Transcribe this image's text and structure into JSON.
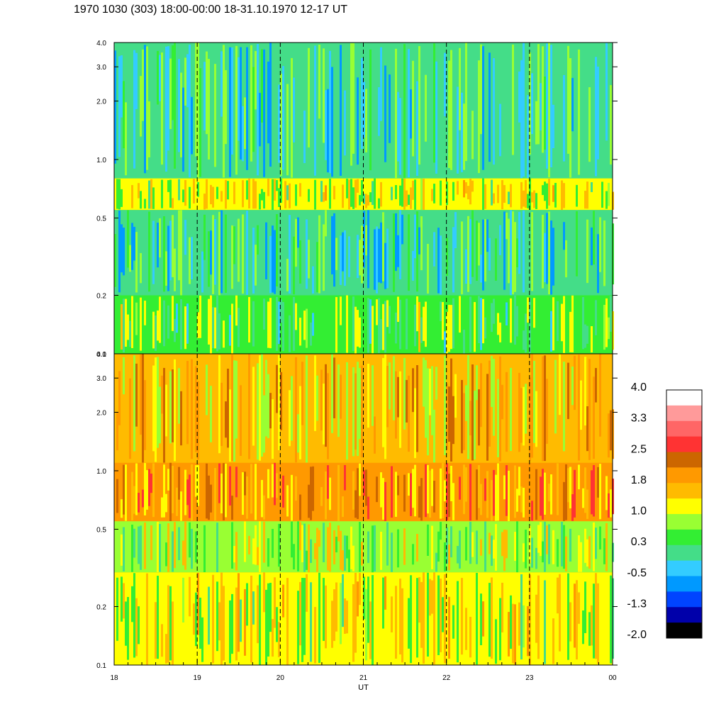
{
  "title": "1970 1030 (303) 18:00-00:00 18-31.10.1970  12-17 UT",
  "chart_data": {
    "type": "heatmap",
    "xlabel": "UT",
    "x_ticks": [
      "18",
      "19",
      "20",
      "21",
      "22",
      "23",
      "00"
    ],
    "x_range": [
      18,
      24
    ],
    "y_ticks": [
      "0.1",
      "0.2",
      "0.5",
      "1.0",
      "2.0",
      "3.0",
      "4.0"
    ],
    "y_tick_values": [
      0.1,
      0.2,
      0.5,
      1.0,
      2.0,
      3.0,
      4.0
    ],
    "y_range": [
      0.1,
      4.0
    ],
    "y_scale": "log",
    "dashed_verticals_at": [
      19,
      20,
      21,
      22,
      23
    ],
    "panels": [
      {
        "name": "upper",
        "mean_level": 0.5,
        "bands": [
          {
            "y_range": [
              0.1,
              0.2
            ],
            "level": 0.6
          },
          {
            "y_range": [
              0.2,
              0.55
            ],
            "level": 0.1
          },
          {
            "y_range": [
              0.55,
              0.8
            ],
            "level": 1.0
          },
          {
            "y_range": [
              0.8,
              4.0
            ],
            "level": 0.2
          }
        ]
      },
      {
        "name": "lower",
        "mean_level": 1.5,
        "bands": [
          {
            "y_range": [
              0.1,
              0.3
            ],
            "level": 1.0
          },
          {
            "y_range": [
              0.3,
              0.55
            ],
            "level": 0.8
          },
          {
            "y_range": [
              0.55,
              1.1
            ],
            "level": 1.9
          },
          {
            "y_range": [
              1.1,
              4.0
            ],
            "level": 1.5
          }
        ]
      }
    ],
    "colorbar": {
      "labels": [
        "4.0",
        "3.3",
        "2.5",
        "1.8",
        "1.0",
        "0.3",
        "-0.5",
        "-1.3",
        "-2.0"
      ],
      "colors_top_to_bottom": [
        "#ffffff",
        "#ff9a9a",
        "#ff6666",
        "#ff3333",
        "#cc6600",
        "#ff9900",
        "#ffbb00",
        "#ffff00",
        "#99ff33",
        "#33ee33",
        "#44dd88",
        "#33ccff",
        "#0099ff",
        "#0044ff",
        "#0000aa",
        "#000000"
      ]
    }
  }
}
